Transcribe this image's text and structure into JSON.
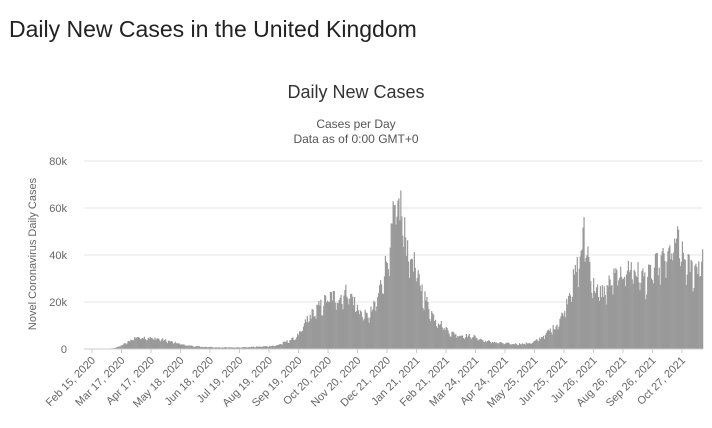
{
  "page": {
    "heading": "Daily New Cases in the United Kingdom"
  },
  "chart_data": {
    "type": "bar",
    "title": "Daily New Cases",
    "subtitle": [
      "Cases per Day",
      "Data as of 0:00 GMT+0"
    ],
    "ylabel": "Novel Coronavirus Daily Cases",
    "xlabel": "",
    "ylim": [
      0,
      80000
    ],
    "yticks": [
      0,
      20000,
      40000,
      60000,
      80000
    ],
    "ytick_labels": [
      "0",
      "20k",
      "40k",
      "60k",
      "80k"
    ],
    "x_tick_labels": [
      "Feb 15, 2020",
      "Mar 17, 2020",
      "Apr 17, 2020",
      "May 18, 2020",
      "Jun 18, 2020",
      "Jul 19, 2020",
      "Aug 19, 2020",
      "Sep 19, 2020",
      "Oct 20, 2020",
      "Nov 20, 2020",
      "Dec 21, 2020",
      "Jan 21, 2021",
      "Feb 21, 2021",
      "Mar 24, 2021",
      "Apr 24, 2021",
      "May 25, 2021",
      "Jun 25, 2021",
      "Jul 26, 2021",
      "Aug 26, 2021",
      "Sep 26, 2021",
      "Oct 27, 2021"
    ],
    "grid": true,
    "bar_color": "#999999",
    "series": [
      {
        "points": [
          [
            "2020-02-15",
            0
          ],
          [
            "2020-03-01",
            30
          ],
          [
            "2020-03-10",
            100
          ],
          [
            "2020-03-17",
            400
          ],
          [
            "2020-03-24",
            1500
          ],
          [
            "2020-03-31",
            3000
          ],
          [
            "2020-04-05",
            4500
          ],
          [
            "2020-04-10",
            5200
          ],
          [
            "2020-04-17",
            5000
          ],
          [
            "2020-04-24",
            4700
          ],
          [
            "2020-05-01",
            4500
          ],
          [
            "2020-05-08",
            3800
          ],
          [
            "2020-05-18",
            2800
          ],
          [
            "2020-05-28",
            1800
          ],
          [
            "2020-06-08",
            1200
          ],
          [
            "2020-06-18",
            900
          ],
          [
            "2020-07-01",
            700
          ],
          [
            "2020-07-19",
            700
          ],
          [
            "2020-08-01",
            800
          ],
          [
            "2020-08-19",
            1100
          ],
          [
            "2020-09-01",
            1500
          ],
          [
            "2020-09-10",
            3000
          ],
          [
            "2020-09-19",
            4500
          ],
          [
            "2020-09-26",
            7000
          ],
          [
            "2020-10-03",
            13000
          ],
          [
            "2020-10-10",
            16000
          ],
          [
            "2020-10-20",
            20000
          ],
          [
            "2020-10-27",
            23000
          ],
          [
            "2020-11-03",
            22000
          ],
          [
            "2020-11-10",
            24000
          ],
          [
            "2020-11-15",
            25000
          ],
          [
            "2020-11-20",
            21000
          ],
          [
            "2020-11-27",
            16000
          ],
          [
            "2020-12-04",
            14000
          ],
          [
            "2020-12-10",
            17000
          ],
          [
            "2020-12-15",
            22000
          ],
          [
            "2020-12-21",
            33000
          ],
          [
            "2020-12-26",
            40000
          ],
          [
            "2020-12-31",
            55000
          ],
          [
            "2021-01-04",
            60000
          ],
          [
            "2021-01-08",
            62000
          ],
          [
            "2021-01-12",
            50000
          ],
          [
            "2021-01-16",
            42000
          ],
          [
            "2021-01-21",
            38000
          ],
          [
            "2021-01-28",
            28000
          ],
          [
            "2021-02-04",
            20000
          ],
          [
            "2021-02-11",
            14000
          ],
          [
            "2021-02-21",
            10000
          ],
          [
            "2021-03-01",
            7000
          ],
          [
            "2021-03-10",
            6000
          ],
          [
            "2021-03-24",
            5500
          ],
          [
            "2021-04-05",
            3500
          ],
          [
            "2021-04-24",
            2500
          ],
          [
            "2021-05-05",
            2200
          ],
          [
            "2021-05-15",
            2300
          ],
          [
            "2021-05-25",
            2800
          ],
          [
            "2021-06-03",
            5000
          ],
          [
            "2021-06-10",
            7500
          ],
          [
            "2021-06-18",
            10000
          ],
          [
            "2021-06-25",
            15000
          ],
          [
            "2021-07-02",
            25000
          ],
          [
            "2021-07-08",
            32000
          ],
          [
            "2021-07-13",
            40000
          ],
          [
            "2021-07-17",
            50000
          ],
          [
            "2021-07-21",
            42000
          ],
          [
            "2021-07-26",
            28000
          ],
          [
            "2021-08-02",
            24000
          ],
          [
            "2021-08-09",
            26000
          ],
          [
            "2021-08-15",
            30000
          ],
          [
            "2021-08-26",
            33000
          ],
          [
            "2021-09-03",
            36000
          ],
          [
            "2021-09-10",
            33000
          ],
          [
            "2021-09-20",
            30000
          ],
          [
            "2021-09-26",
            34000
          ],
          [
            "2021-10-05",
            38000
          ],
          [
            "2021-10-12",
            40000
          ],
          [
            "2021-10-18",
            44000
          ],
          [
            "2021-10-21",
            48000
          ],
          [
            "2021-10-27",
            40000
          ],
          [
            "2021-11-02",
            36000
          ],
          [
            "2021-11-08",
            34000
          ],
          [
            "2021-11-13",
            37000
          ],
          [
            "2021-11-17",
            42000
          ]
        ]
      }
    ]
  }
}
